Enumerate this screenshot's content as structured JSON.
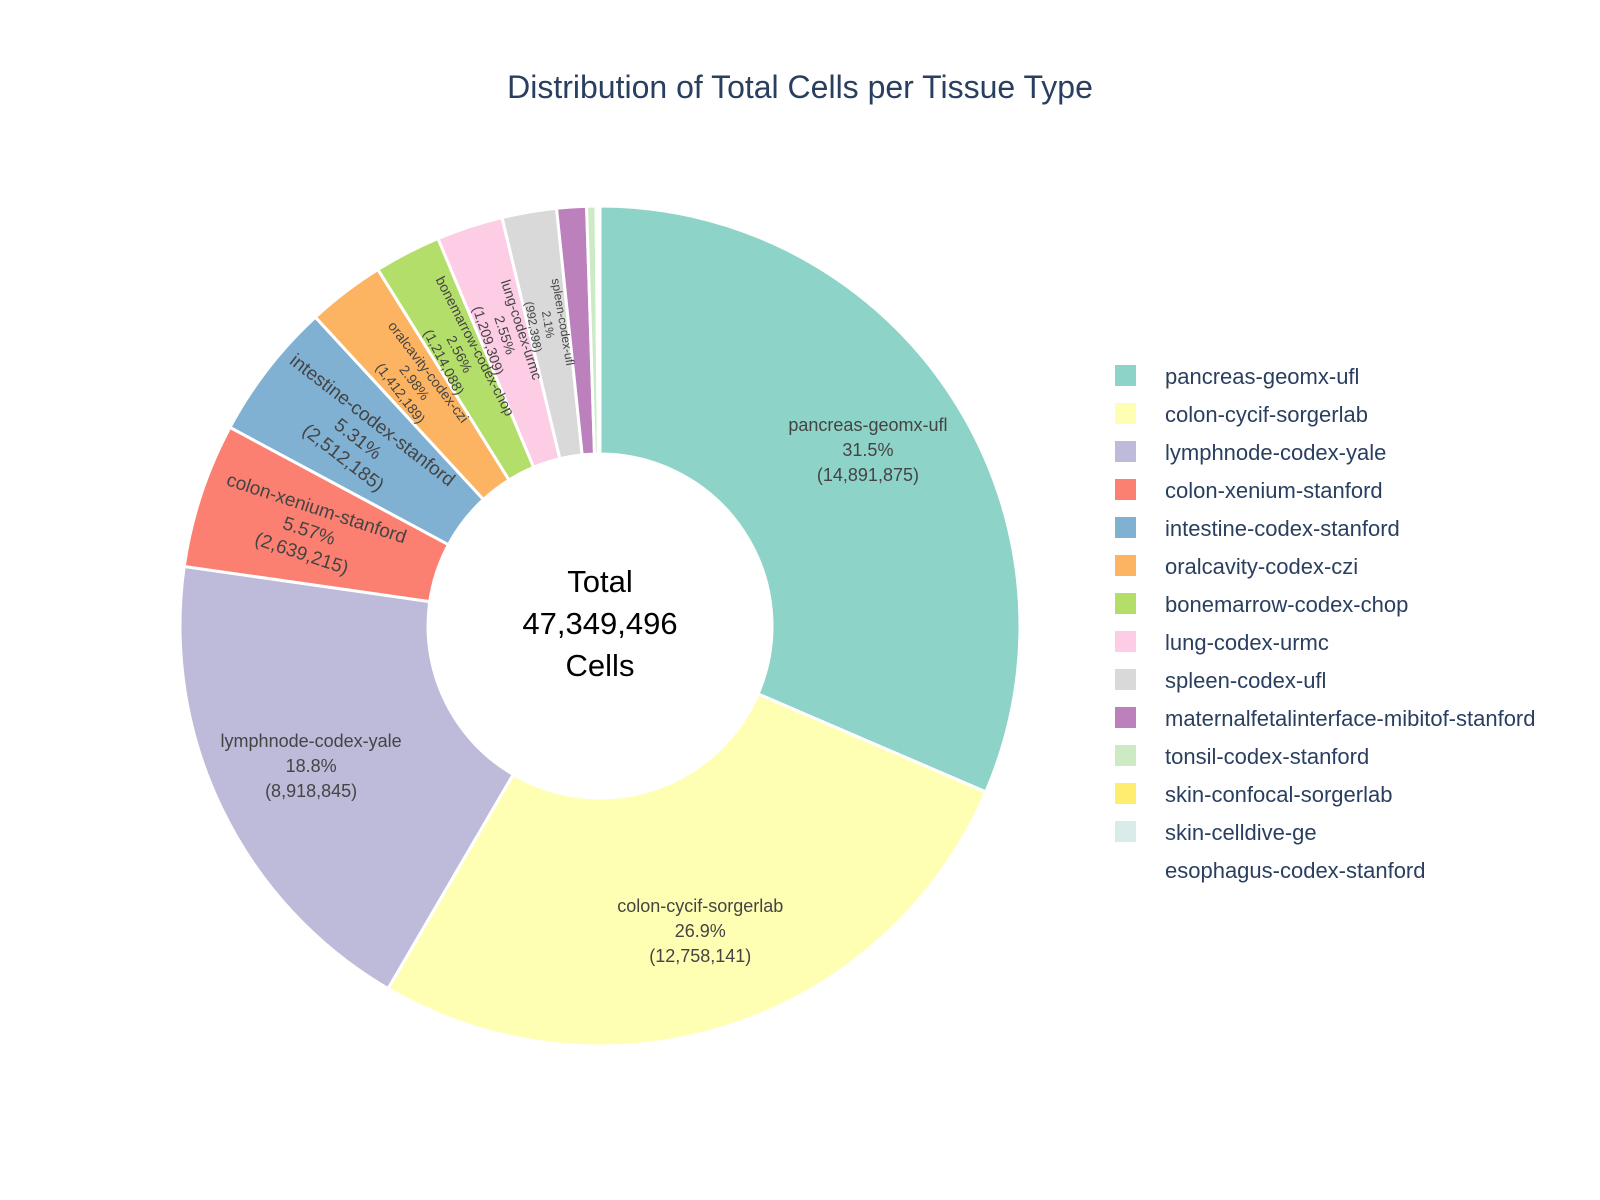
{
  "chart_data": {
    "type": "pie",
    "hole": true,
    "title": "Distribution of Total Cells per Tissue Type",
    "center_text": [
      "Total",
      "47,349,496",
      "Cells"
    ],
    "total": 47349496,
    "legend_position": "right",
    "slices": [
      {
        "label": "pancreas-geomx-ufl",
        "value": 14891875,
        "percent": "31.5%",
        "value_text": "(14,891,875)",
        "color": "#8dd3c7"
      },
      {
        "label": "colon-cycif-sorgerlab",
        "value": 12758141,
        "percent": "26.9%",
        "value_text": "(12,758,141)",
        "color": "#ffffb3"
      },
      {
        "label": "lymphnode-codex-yale",
        "value": 8918845,
        "percent": "18.8%",
        "value_text": "(8,918,845)",
        "color": "#bebada"
      },
      {
        "label": "colon-xenium-stanford",
        "value": 2639215,
        "percent": "5.57%",
        "value_text": "(2,639,215)",
        "color": "#fb8072"
      },
      {
        "label": "intestine-codex-stanford",
        "value": 2512185,
        "percent": "5.31%",
        "value_text": "(2,512,185)",
        "color": "#80b1d3"
      },
      {
        "label": "oralcavity-codex-czi",
        "value": 1412189,
        "percent": "2.98%",
        "value_text": "(1,412,189)",
        "color": "#fdb462"
      },
      {
        "label": "bonemarrow-codex-chop",
        "value": 1214088,
        "percent": "2.56%",
        "value_text": "(1,214,088)",
        "color": "#b3de69"
      },
      {
        "label": "lung-codex-urmc",
        "value": 1209309,
        "percent": "2.55%",
        "value_text": "(1,209,309)",
        "color": "#fccde5"
      },
      {
        "label": "spleen-codex-ufl",
        "value": 992398,
        "percent": "2.1%",
        "value_text": "(992,398)",
        "color": "#d9d9d9"
      },
      {
        "label": "maternalfetalinterface-mibitof-stanford",
        "value": 540000,
        "percent": "",
        "value_text": "",
        "color": "#bc80bd"
      },
      {
        "label": "tonsil-codex-stanford",
        "value": 170000,
        "percent": "",
        "value_text": "",
        "color": "#ccebc5"
      },
      {
        "label": "skin-confocal-sorgerlab",
        "value": 40000,
        "percent": "",
        "value_text": "",
        "color": "#ffed6f"
      },
      {
        "label": "skin-celldive-ge",
        "value": 30000,
        "percent": "",
        "value_text": "",
        "color": "#d9ecea"
      },
      {
        "label": "esophagus-codex-stanford",
        "value": 1251,
        "percent": "",
        "value_text": "",
        "color": "#ffffff"
      }
    ]
  }
}
